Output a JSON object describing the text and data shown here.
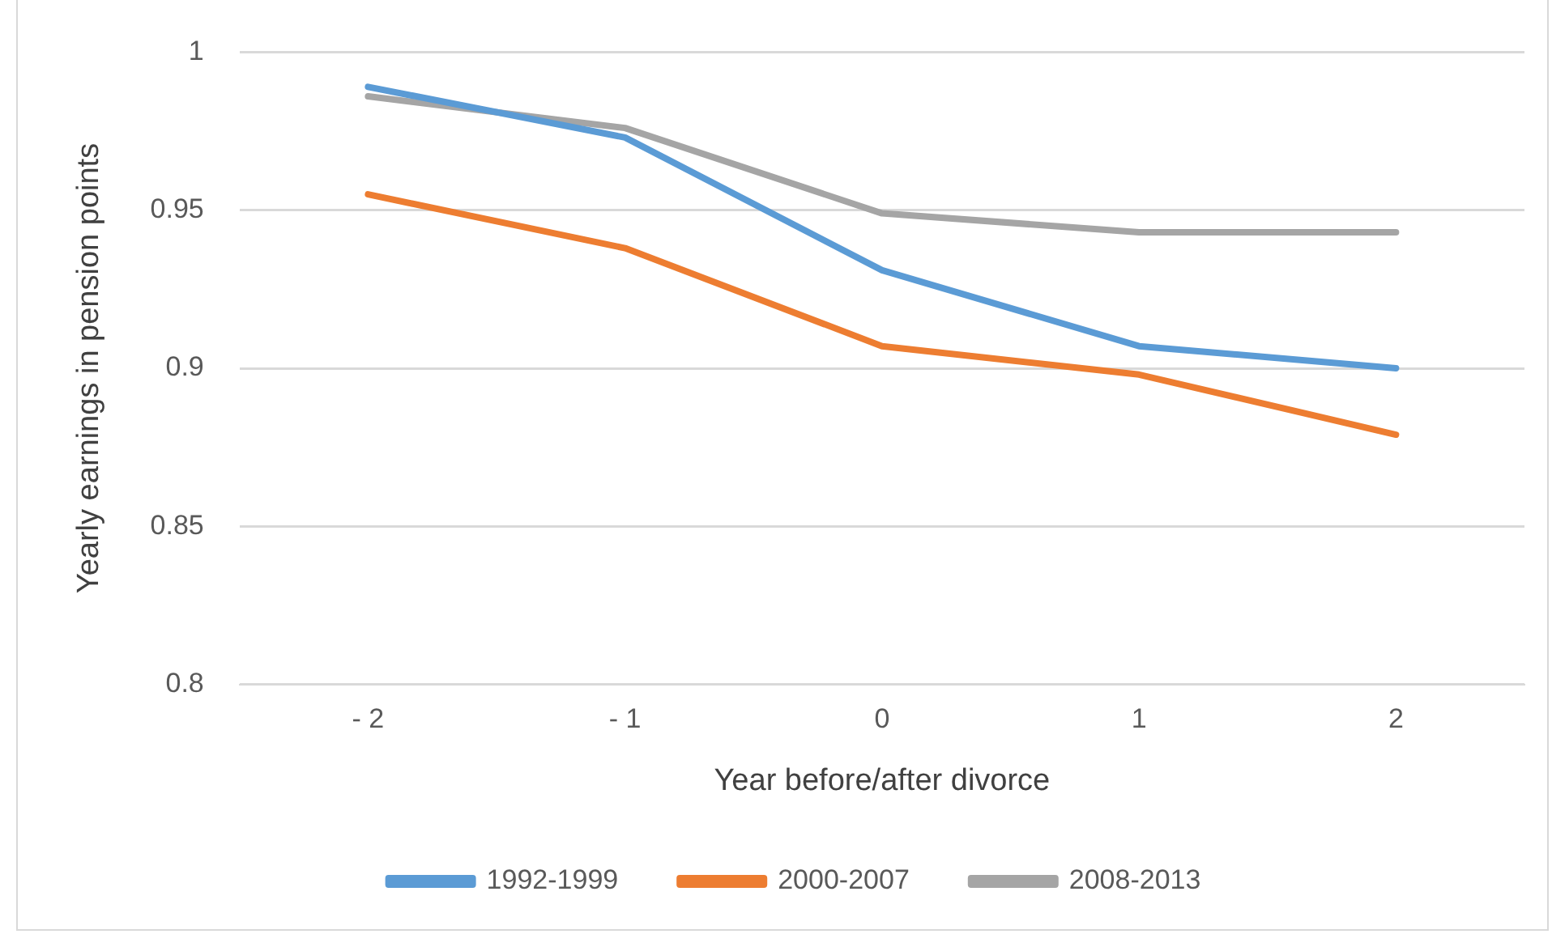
{
  "chart_data": {
    "type": "line",
    "xlabel": "Year before/after divorce",
    "ylabel": "Yearly earnings in pension points",
    "categories": [
      "- 2",
      "- 1",
      "0",
      "1",
      "2"
    ],
    "series": [
      {
        "name": "1992-1999",
        "color": "#5b9bd5",
        "values": [
          0.989,
          0.973,
          0.931,
          0.907,
          0.9
        ]
      },
      {
        "name": "2000-2007",
        "color": "#ed7d31",
        "values": [
          0.955,
          0.938,
          0.907,
          0.898,
          0.879
        ]
      },
      {
        "name": "2008-2013",
        "color": "#a5a5a5",
        "values": [
          0.986,
          0.976,
          0.949,
          0.943,
          0.943
        ]
      }
    ],
    "ylim": [
      0.8,
      1
    ],
    "yticks": [
      0.8,
      0.85,
      0.9,
      0.95,
      1
    ],
    "grid": "y",
    "legend": "bottom",
    "marker": "none",
    "line_style": "solid"
  }
}
